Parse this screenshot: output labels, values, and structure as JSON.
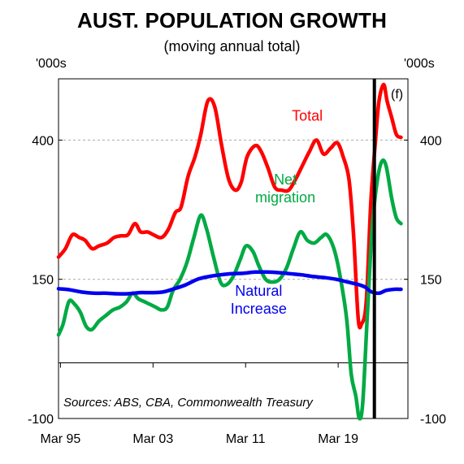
{
  "chart_data": {
    "type": "line",
    "title": "AUST. POPULATION GROWTH",
    "subtitle": "(moving annual total)",
    "ylabel_left": "'000s",
    "ylabel_right": "'000s",
    "ylim": [
      -100,
      510
    ],
    "y_ticks": [
      {
        "value": 400,
        "label": "400"
      },
      {
        "value": 150,
        "label": "150"
      },
      {
        "value": -100,
        "label": "-100"
      }
    ],
    "xlim": [
      1995.0,
      2025.2
    ],
    "x_ticks": [
      {
        "value": 1995.17,
        "label": "Mar 95"
      },
      {
        "value": 2003.17,
        "label": "Mar 03"
      },
      {
        "value": 2011.17,
        "label": "Mar 11"
      },
      {
        "value": 2019.17,
        "label": "Mar 19"
      }
    ],
    "zero_line": 0,
    "forecast_divider_x": 2022.3,
    "forecast_label": "(f)",
    "source": "Sources: ABS, CBA, Commonwealth Treasury",
    "series": [
      {
        "name": "Total",
        "color": "#ff0000",
        "label_lines": [
          "Total"
        ],
        "x": [
          1995.0,
          1995.6,
          1996.2,
          1996.8,
          1997.3,
          1997.9,
          1998.5,
          1999.2,
          1999.8,
          2000.4,
          2001.0,
          2001.6,
          2002.1,
          2002.7,
          2003.2,
          2003.9,
          2004.5,
          2005.1,
          2005.6,
          2006.2,
          2006.8,
          2007.3,
          2007.9,
          2008.5,
          2009.1,
          2009.7,
          2010.3,
          2010.8,
          2011.3,
          2012.0,
          2012.5,
          2013.1,
          2013.7,
          2014.3,
          2014.9,
          2015.5,
          2016.1,
          2016.7,
          2017.3,
          2017.9,
          2018.5,
          2019.1,
          2019.6,
          2020.1,
          2020.5,
          2020.9,
          2021.2,
          2021.6,
          2022.0,
          2022.4,
          2022.7,
          2023.1,
          2023.4,
          2023.8,
          2024.2,
          2024.6
        ],
        "values": [
          190,
          205,
          230,
          225,
          220,
          205,
          210,
          215,
          225,
          228,
          230,
          250,
          235,
          235,
          230,
          225,
          240,
          270,
          280,
          335,
          370,
          410,
          470,
          460,
          390,
          330,
          310,
          325,
          370,
          390,
          380,
          350,
          315,
          310,
          310,
          330,
          355,
          380,
          400,
          375,
          385,
          395,
          370,
          330,
          230,
          80,
          70,
          110,
          290,
          400,
          470,
          500,
          470,
          440,
          410,
          405
        ]
      },
      {
        "name": "Net migration",
        "color": "#00aa44",
        "label_lines": [
          "Net",
          "migration"
        ],
        "x": [
          1995.0,
          1995.4,
          1995.9,
          1996.4,
          1996.9,
          1997.4,
          1997.9,
          1998.5,
          1999.1,
          1999.7,
          2000.3,
          2000.9,
          2001.4,
          2001.9,
          2002.4,
          2002.9,
          2003.4,
          2003.9,
          2004.4,
          2004.9,
          2005.5,
          2006.1,
          2006.7,
          2007.3,
          2007.8,
          2008.4,
          2009.0,
          2009.5,
          2010.1,
          2010.7,
          2011.2,
          2011.8,
          2012.3,
          2012.9,
          2013.5,
          2014.1,
          2014.7,
          2015.3,
          2015.9,
          2016.5,
          2017.1,
          2017.7,
          2018.2,
          2018.8,
          2019.3,
          2019.9,
          2020.3,
          2020.7,
          2021.0,
          2021.3,
          2021.7,
          2022.1,
          2022.5,
          2022.9,
          2023.3,
          2023.8,
          2024.2,
          2024.6
        ],
        "values": [
          50,
          70,
          110,
          105,
          90,
          65,
          60,
          75,
          85,
          95,
          100,
          110,
          125,
          115,
          110,
          105,
          100,
          95,
          100,
          130,
          150,
          180,
          225,
          265,
          240,
          190,
          145,
          140,
          155,
          185,
          210,
          200,
          175,
          150,
          145,
          150,
          170,
          205,
          235,
          220,
          215,
          225,
          230,
          205,
          160,
          80,
          -20,
          -60,
          -100,
          -70,
          90,
          240,
          320,
          360,
          355,
          295,
          260,
          250
        ]
      },
      {
        "name": "Natural Increase",
        "color": "#0000ee",
        "label_lines": [
          "Natural",
          "Increase"
        ],
        "x": [
          1995.0,
          1996.0,
          1997.0,
          1998.0,
          1999.0,
          2000.0,
          2001.0,
          2002.0,
          2003.0,
          2004.0,
          2005.0,
          2006.0,
          2007.0,
          2008.0,
          2009.0,
          2010.0,
          2011.0,
          2012.0,
          2013.0,
          2014.0,
          2015.0,
          2016.0,
          2017.0,
          2018.0,
          2019.0,
          2020.0,
          2021.0,
          2021.5,
          2022.0,
          2022.7,
          2023.3,
          2024.0,
          2024.6
        ],
        "values": [
          133,
          131,
          127,
          125,
          125,
          124,
          124,
          126,
          126,
          127,
          133,
          140,
          150,
          155,
          158,
          160,
          161,
          163,
          163,
          162,
          160,
          158,
          155,
          153,
          150,
          145,
          140,
          136,
          128,
          125,
          130,
          132,
          132
        ]
      }
    ],
    "series_label_positions": {
      "Total": [
        2016.5,
        435
      ],
      "Net migration": [
        2014.6,
        320
      ],
      "Natural Increase": [
        2012.3,
        120
      ]
    }
  }
}
